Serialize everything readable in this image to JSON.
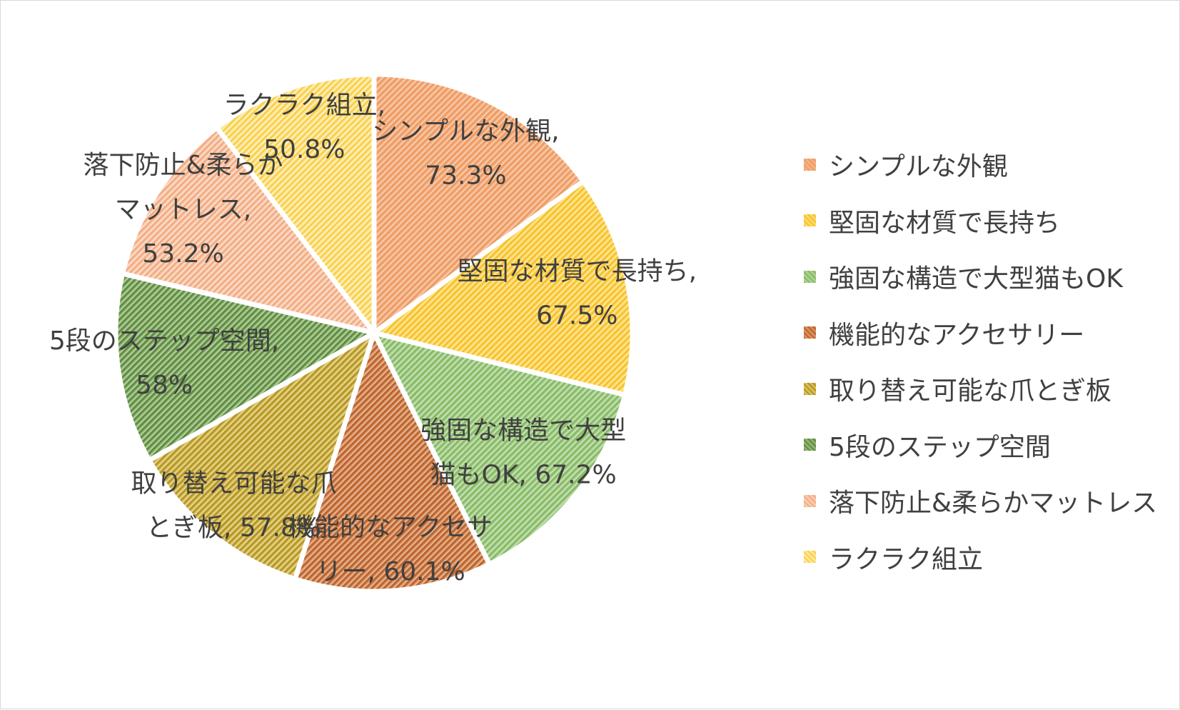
{
  "chart_data": {
    "type": "pie",
    "title": "",
    "slices": [
      {
        "name": "シンプルな外観",
        "value": 73.3,
        "label_lines": [
          "シンプルな外観,",
          "73.3%"
        ],
        "color": "#f4b183",
        "hatch": "#ee9b63"
      },
      {
        "name": "堅固な材質で長持ち",
        "value": 67.5,
        "label_lines": [
          "堅固な材質で長持ち,",
          "67.5%"
        ],
        "color": "#ffd966",
        "hatch": "#f5c02b"
      },
      {
        "name": "強固な構造で大型猫もOK",
        "value": 67.2,
        "label_lines": [
          "強固な構造で大型",
          "猫もOK, 67.2%"
        ],
        "color": "#a9d18e",
        "hatch": "#86b865"
      },
      {
        "name": "機能的なアクセサリー",
        "value": 60.1,
        "label_lines": [
          "機能的なアクセサ",
          "リー, 60.1%"
        ],
        "color": "#d98e5c",
        "hatch": "#b8622e"
      },
      {
        "name": "取り替え可能な爪とぎ板",
        "value": 57.8,
        "label_lines": [
          "取り替え可能な爪",
          "とぎ板, 57.8%"
        ],
        "color": "#d8bd55",
        "hatch": "#b09426"
      },
      {
        "name": "5段のステップ空間",
        "value": 58,
        "label_lines": [
          "5段のステップ空間,",
          "58%"
        ],
        "color": "#8fb36f",
        "hatch": "#5b8a40"
      },
      {
        "name": "落下防止&柔らかマットレス",
        "value": 53.2,
        "label_lines": [
          "落下防止&柔らか",
          "マットレス,",
          "53.2%"
        ],
        "color": "#f8cbad",
        "hatch": "#f2aa82"
      },
      {
        "name": "ラクラク組立",
        "value": 50.8,
        "label_lines": [
          "ラクラク組立,",
          "50.8%"
        ],
        "color": "#ffe699",
        "hatch": "#f7cf45"
      }
    ],
    "legend_position": "right",
    "pattern": "diagonal-hatch"
  }
}
